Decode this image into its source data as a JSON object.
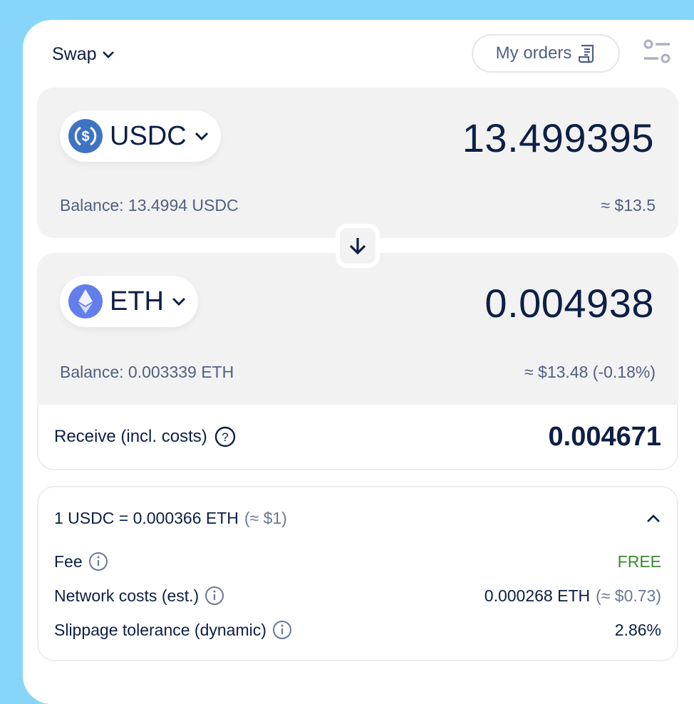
{
  "header": {
    "title": "Swap",
    "my_orders": "My orders"
  },
  "sell": {
    "token": "USDC",
    "amount": "13.499395",
    "balance": "Balance: 13.4994 USDC",
    "usd": "≈ $13.5"
  },
  "buy": {
    "token": "ETH",
    "amount": "0.004938",
    "balance": "Balance: 0.003339 ETH",
    "usd": "≈ $13.48 (-0.18%)"
  },
  "receive": {
    "label": "Receive (incl. costs)",
    "value": "0.004671"
  },
  "details": {
    "rate": "1 USDC = 0.000366 ETH",
    "rate_usd": "(≈ $1)",
    "rows": [
      {
        "label": "Fee",
        "value": "FREE"
      },
      {
        "label": "Network costs (est.)",
        "value": "0.000268 ETH",
        "value_usd": "(≈ $0.73)"
      },
      {
        "label": "Slippage tolerance (dynamic)",
        "value": "2.86%"
      }
    ]
  },
  "colors": {
    "background": "#87d6fa",
    "usdc": "#3e73c4",
    "eth": "#627eea",
    "free": "#3b8a2f",
    "text": "#0d1f45"
  }
}
